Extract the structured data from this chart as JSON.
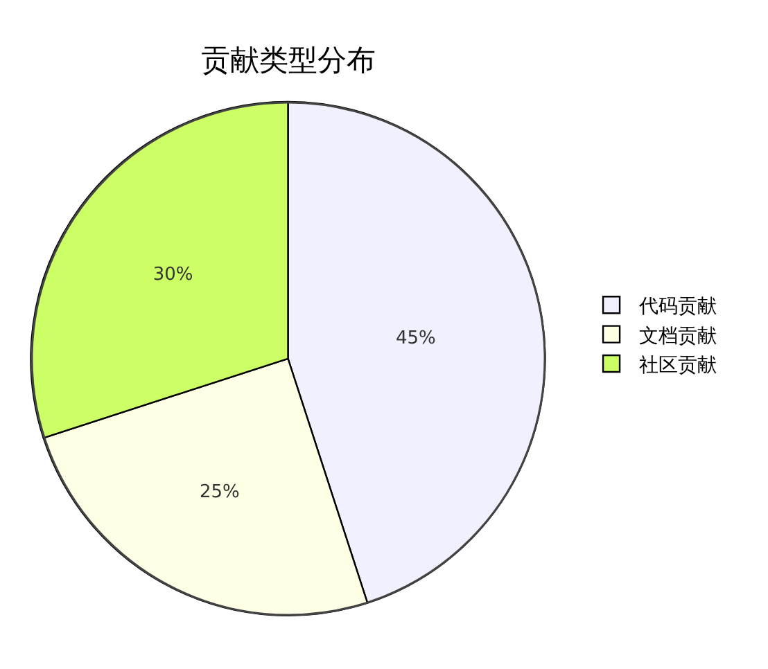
{
  "chart_data": {
    "type": "pie",
    "title": "贡献类型分布",
    "categories": [
      "代码贡献",
      "文档贡献",
      "社区贡献"
    ],
    "values": [
      45,
      25,
      30
    ],
    "value_labels": [
      "45%",
      "25%",
      "30%"
    ],
    "colors": [
      "#f0f0ff",
      "#ffffe6",
      "#ccff66"
    ],
    "legend": "right"
  }
}
